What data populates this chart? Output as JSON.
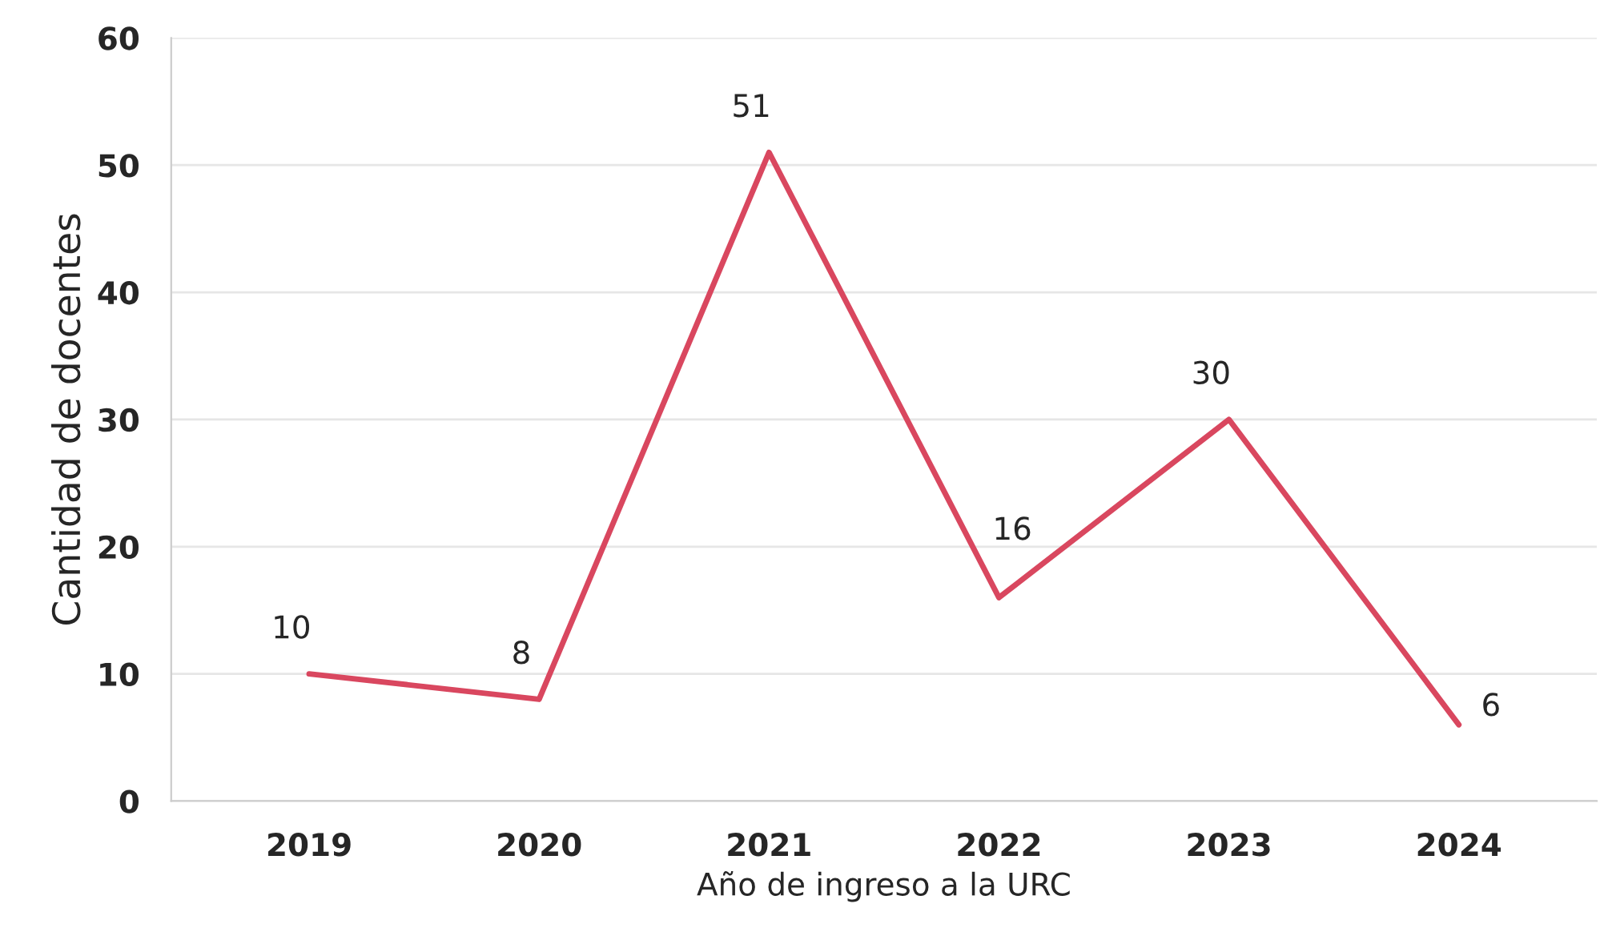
{
  "chart_data": {
    "type": "line",
    "xlabel": "Año de ingreso a la URC",
    "ylabel": "Cantidad de docentes",
    "categories": [
      "2019",
      "2020",
      "2021",
      "2022",
      "2023",
      "2024"
    ],
    "series": [
      {
        "color": "#d9475f",
        "values": [
          10,
          8,
          51,
          16,
          30,
          6
        ]
      }
    ],
    "ylim": [
      0,
      60
    ],
    "yticks": [
      0,
      10,
      20,
      30,
      40,
      50,
      60
    ],
    "grid": "y",
    "data_labels": true,
    "marker": "none",
    "line_style": "solid"
  }
}
